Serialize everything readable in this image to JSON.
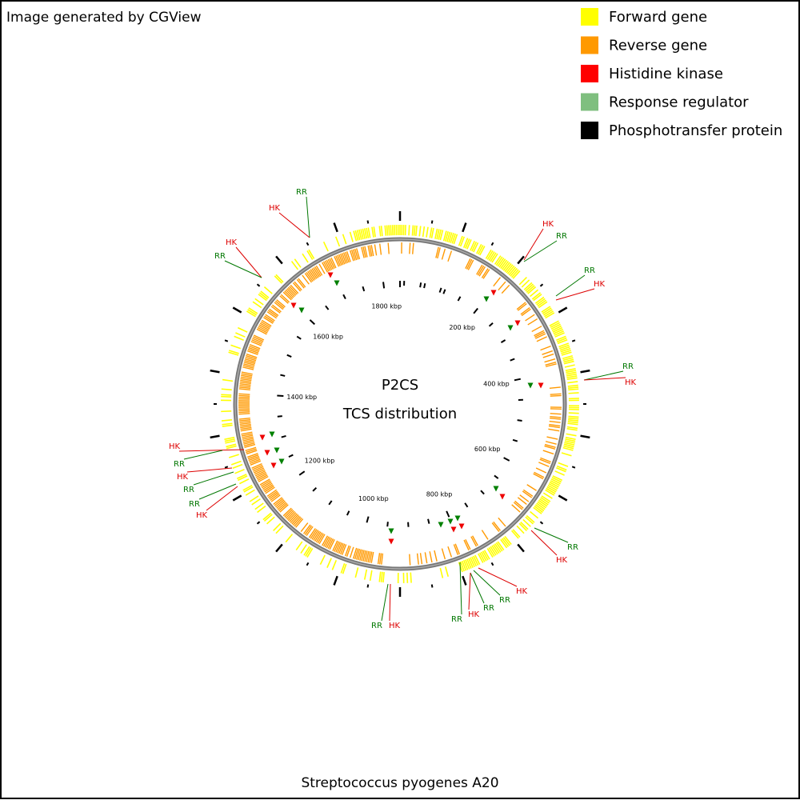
{
  "header": {
    "credit": "Image generated by CGView"
  },
  "legend": [
    {
      "label": "Forward gene",
      "color": "#ffff00"
    },
    {
      "label": "Reverse gene",
      "color": "#ff9900"
    },
    {
      "label": "Histidine kinase",
      "color": "#ff0000"
    },
    {
      "label": "Response regulator",
      "color": "#7fbf7f"
    },
    {
      "label": "Phosphotransfer protein",
      "color": "#000000"
    }
  ],
  "center": {
    "title": "P2CS",
    "subtitle": "TCS distribution"
  },
  "scale_labels": [
    "200 kbp",
    "400 kbp",
    "600 kbp",
    "800 kbp",
    "1000 kbp",
    "1200 kbp",
    "1400 kbp",
    "1600 kbp",
    "1800 kbp"
  ],
  "callouts": [
    {
      "label": "RR",
      "color": "#007700"
    },
    {
      "label": "HK",
      "color": "#dd0000"
    },
    {
      "label": "HK",
      "color": "#dd0000"
    },
    {
      "label": "RR",
      "color": "#007700"
    },
    {
      "label": "HK",
      "color": "#dd0000"
    },
    {
      "label": "RR",
      "color": "#007700"
    },
    {
      "label": "RR",
      "color": "#007700"
    },
    {
      "label": "HK",
      "color": "#dd0000"
    },
    {
      "label": "RR",
      "color": "#007700"
    },
    {
      "label": "HK",
      "color": "#dd0000"
    },
    {
      "label": "RR",
      "color": "#007700"
    },
    {
      "label": "HK",
      "color": "#dd0000"
    },
    {
      "label": "HK",
      "color": "#dd0000"
    },
    {
      "label": "RR",
      "color": "#007700"
    },
    {
      "label": "RR",
      "color": "#007700"
    },
    {
      "label": "HK",
      "color": "#dd0000"
    },
    {
      "label": "RR",
      "color": "#007700"
    },
    {
      "label": "RR",
      "color": "#007700"
    },
    {
      "label": "HK",
      "color": "#dd0000"
    },
    {
      "label": "HK",
      "color": "#dd0000"
    },
    {
      "label": "RR",
      "color": "#007700"
    },
    {
      "label": "HK",
      "color": "#dd0000"
    },
    {
      "label": "RR",
      "color": "#007700"
    },
    {
      "label": "RR",
      "color": "#007700"
    },
    {
      "label": "HK",
      "color": "#dd0000"
    }
  ],
  "footer": "Streptococcus pyogenes A20"
}
